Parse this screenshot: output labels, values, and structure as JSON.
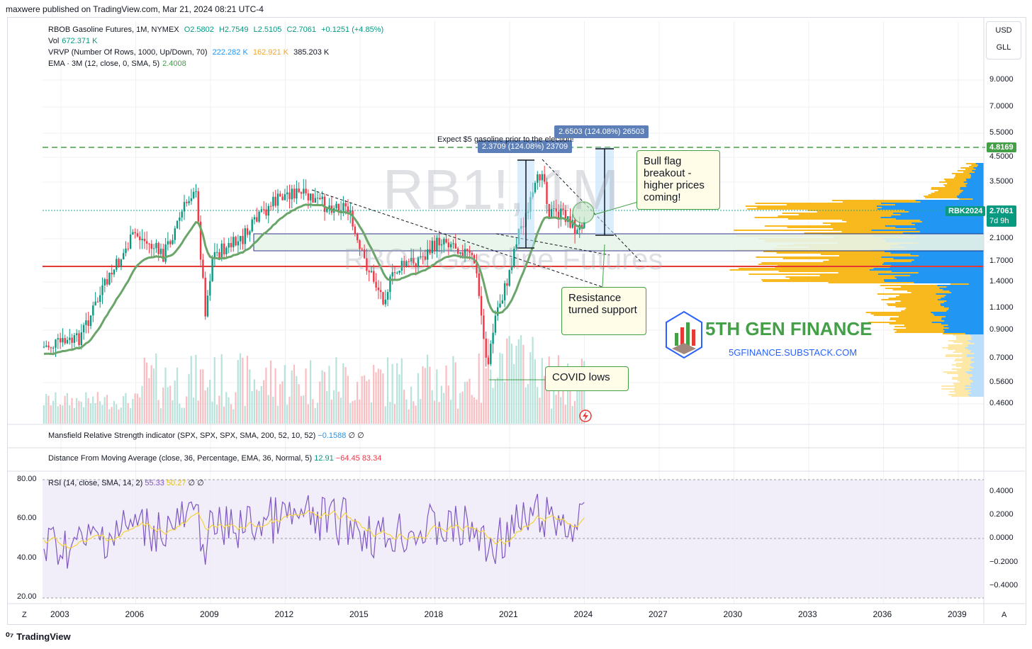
{
  "header": {
    "publisher": "maxwere published on TradingView.com, Mar 21, 2024 08:21 UTC-4"
  },
  "legend": {
    "symbol_line": "RBOB Gasoline Futures, 1M, NYMEX",
    "open": "O2.5802",
    "high": "H2.7549",
    "low": "L2.5105",
    "close": "C2.7061",
    "change": "+0.1251 (+4.85%)",
    "vol_label": "Vol",
    "vol_value": "672.371 K",
    "vrvp_label": "VRVP (Number Of Rows, 1000, Up/Down, 70)",
    "vrvp_up": "222.282 K",
    "vrvp_down": "162.921 K",
    "vrvp_total": "385.203 K",
    "ema_label": "EMA · 3M (12, close, 0, SMA, 5)",
    "ema_value": "2.4008"
  },
  "currency": {
    "usd": "USD",
    "gll": "GLL"
  },
  "price_axis": [
    "9.0000",
    "7.0000",
    "5.5000",
    "4.5000",
    "3.5000",
    "2.1000",
    "1.7000",
    "1.4000",
    "1.1000",
    "0.9000",
    "0.7000",
    "0.5600",
    "0.4600"
  ],
  "price_tags": {
    "target": "4.8169",
    "symbol": "RBK2024",
    "last": "2.7061",
    "countdown": "7d 9h"
  },
  "colors": {
    "up": "#089981",
    "down": "#f23645",
    "ema": "#6aa56a",
    "target_line": "#43a047",
    "support_line": "#e53935",
    "profile_up": "#2196f3",
    "profile_down": "#f7b91e"
  },
  "watermark": {
    "symbol": "RB1!, 1M",
    "name": "RBOB Gasoline Futures"
  },
  "annotations": {
    "expect": "Expect $5 gasoline prior to the election!",
    "measure1": "2.3709 (124.08%) 23709",
    "measure2": "2.6503 (124.08%) 26503",
    "bull_flag": "Bull flag breakout - higher prices coming!",
    "resistance": "Resistance turned support",
    "covid": "COVID lows"
  },
  "brand": {
    "name": "5TH GEN FINANCE",
    "url": "5GFINANCE.SUBSTACK.COM"
  },
  "panels": {
    "mansfield": {
      "label": "Mansfield Relative Strength indicator (SPX, SPX, SPX, SMA, 200, 52, 10, 52)",
      "value": "−0.1588",
      "extra": "∅ ∅"
    },
    "distance": {
      "label": "Distance From Moving Average (close, 36, Percentage, EMA, 36, Normal, 5)",
      "v1": "12.91",
      "v2": "−64.45",
      "v3": "83.34"
    },
    "rsi": {
      "label": "RSI (14, close, SMA, 14, 2)",
      "v1": "55.33",
      "v2": "50.27",
      "extra": "∅ ∅"
    }
  },
  "rsi_axis": [
    "80.00",
    "60.00",
    "40.00",
    "20.00"
  ],
  "dist_axis": [
    "0.4000",
    "0.2000",
    "0.0000",
    "−0.2000",
    "−0.4000"
  ],
  "x_axis": [
    "2003",
    "2006",
    "2009",
    "2012",
    "2015",
    "2018",
    "2021",
    "2024",
    "2027",
    "2030",
    "2033",
    "2036",
    "2039"
  ],
  "footer": {
    "brand": "TradingView",
    "z_left": "Z",
    "a_right": "A"
  }
}
